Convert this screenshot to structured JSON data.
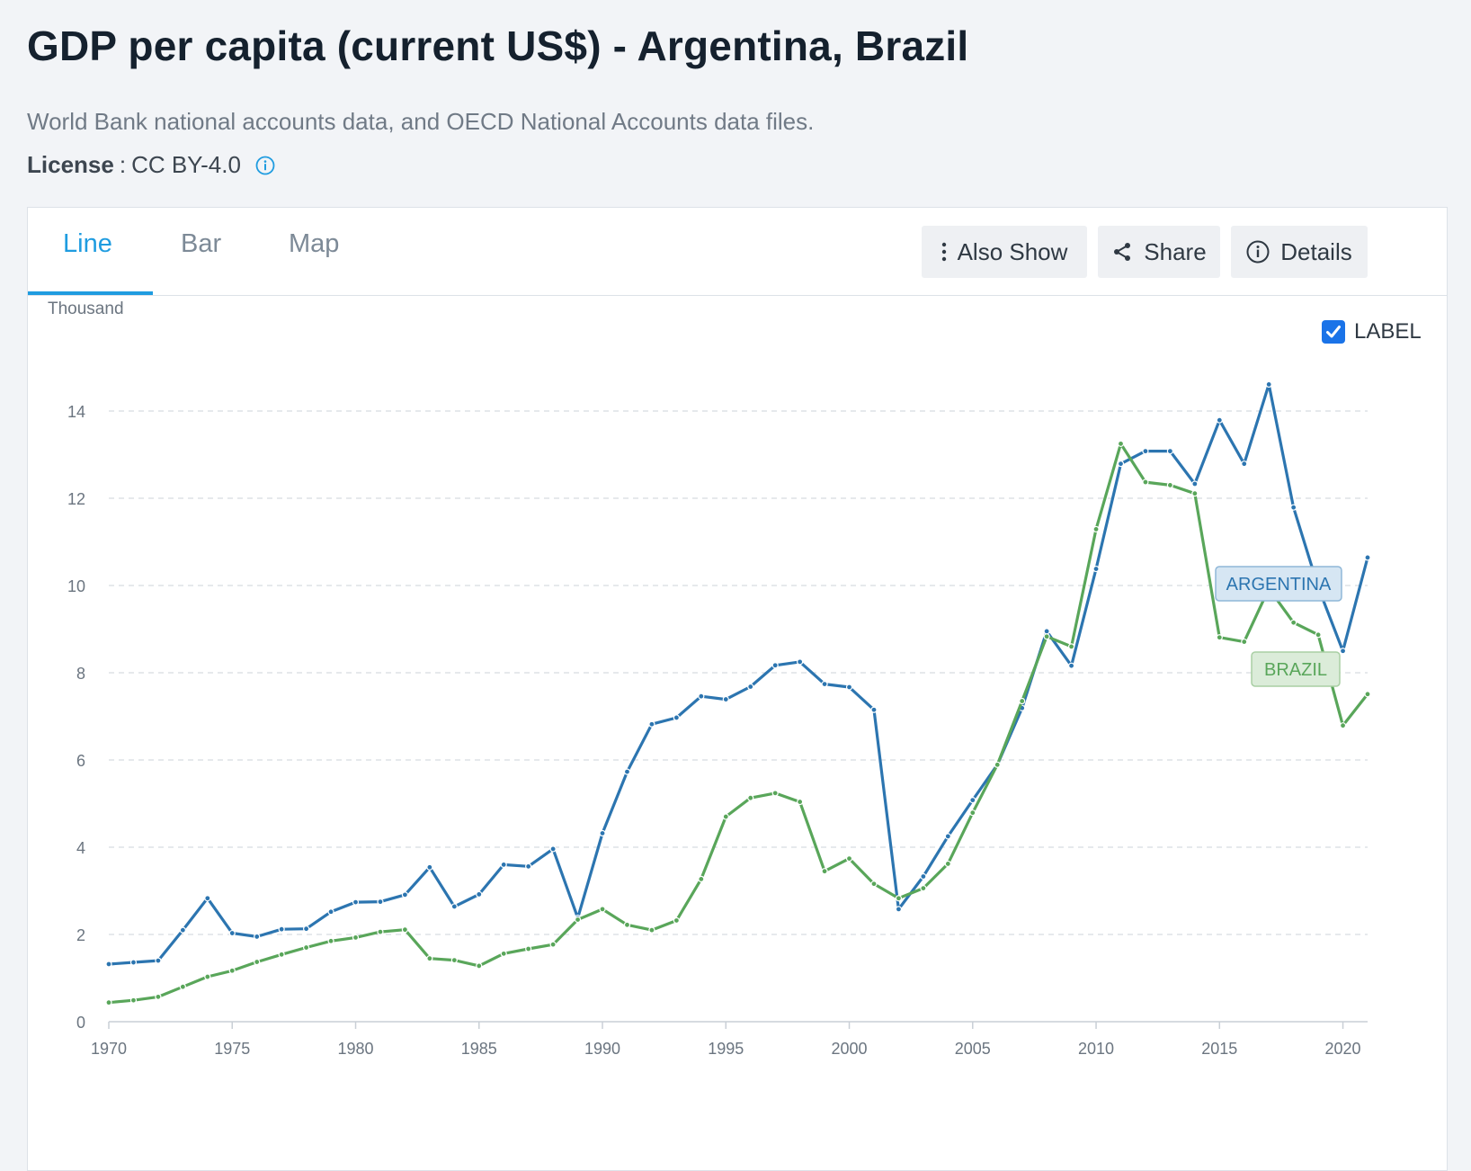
{
  "header": {
    "title": "GDP per capita (current US$) - Argentina, Brazil",
    "source": "World Bank national accounts data, and OECD National Accounts data files.",
    "license_label": "License",
    "license_sep": ":",
    "license_value": "CC BY-4.0"
  },
  "tabs": [
    {
      "label": "Line",
      "active": true
    },
    {
      "label": "Bar",
      "active": false
    },
    {
      "label": "Map",
      "active": false
    }
  ],
  "toolbar": {
    "also_show": "Also Show",
    "share": "Share",
    "details": "Details"
  },
  "label_toggle": {
    "label": "LABEL",
    "checked": true
  },
  "icons": [
    "info-icon",
    "more-vert-icon",
    "share-icon",
    "details-info-icon",
    "checkmark-icon"
  ],
  "colors": {
    "accent": "#1f9ce0",
    "argentina": "#2c75b0",
    "brazil": "#59a65a",
    "checkbox": "#1a73e8"
  },
  "chart_data": {
    "type": "line",
    "unit_label": "Thousand",
    "x": [
      1970,
      1971,
      1972,
      1973,
      1974,
      1975,
      1976,
      1977,
      1978,
      1979,
      1980,
      1981,
      1982,
      1983,
      1984,
      1985,
      1986,
      1987,
      1988,
      1989,
      1990,
      1991,
      1992,
      1993,
      1994,
      1995,
      1996,
      1997,
      1998,
      1999,
      2000,
      2001,
      2002,
      2003,
      2004,
      2005,
      2006,
      2007,
      2008,
      2009,
      2010,
      2011,
      2012,
      2013,
      2014,
      2015,
      2016,
      2017,
      2018,
      2019,
      2020,
      2021
    ],
    "xticks": [
      1970,
      1975,
      1980,
      1985,
      1990,
      1995,
      2000,
      2005,
      2010,
      2015,
      2020
    ],
    "yticks": [
      0,
      2,
      4,
      6,
      8,
      10,
      12,
      14
    ],
    "ylim": [
      0,
      14.6
    ],
    "xlim": [
      1970,
      2021
    ],
    "grid": true,
    "series": [
      {
        "name": "ARGENTINA",
        "values": [
          1.32,
          1.36,
          1.4,
          2.1,
          2.83,
          2.03,
          1.95,
          2.12,
          2.13,
          2.52,
          2.74,
          2.75,
          2.91,
          3.54,
          2.64,
          2.92,
          3.6,
          3.56,
          3.96,
          2.38,
          4.32,
          5.73,
          6.82,
          6.97,
          7.46,
          7.39,
          7.68,
          8.17,
          8.25,
          7.74,
          7.67,
          7.15,
          2.58,
          3.33,
          4.25,
          5.08,
          5.89,
          7.19,
          8.95,
          8.16,
          10.38,
          12.79,
          13.08,
          13.08,
          12.33,
          13.79,
          12.79,
          14.61,
          11.79,
          9.96,
          8.5,
          10.64
        ]
      },
      {
        "name": "BRAZIL",
        "values": [
          0.44,
          0.49,
          0.57,
          0.8,
          1.03,
          1.17,
          1.37,
          1.54,
          1.7,
          1.85,
          1.93,
          2.06,
          2.11,
          1.45,
          1.41,
          1.28,
          1.56,
          1.67,
          1.77,
          2.34,
          2.58,
          2.22,
          2.1,
          2.32,
          3.27,
          4.7,
          5.13,
          5.24,
          5.04,
          3.45,
          3.74,
          3.16,
          2.83,
          3.06,
          3.62,
          4.79,
          5.89,
          7.35,
          8.83,
          8.6,
          11.29,
          13.25,
          12.37,
          12.3,
          12.11,
          8.81,
          8.71,
          9.93,
          9.15,
          8.87,
          6.79,
          7.51
        ]
      }
    ],
    "end_labels": [
      "ARGENTINA",
      "BRAZIL"
    ]
  }
}
